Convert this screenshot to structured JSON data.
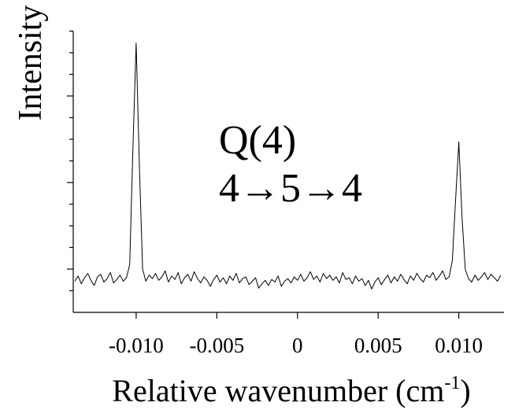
{
  "chart_data": {
    "type": "line",
    "ylabel": "Intensity",
    "xlabel": {
      "text": "Relative wavenumber (cm",
      "sup": "-1",
      "end": ")"
    },
    "annotations": [
      "Q(4)",
      "4→5→4"
    ],
    "color": "#000000",
    "xlim": [
      -0.0139,
      0.0128
    ],
    "xticks": [
      {
        "value": -0.01,
        "label": "-0.010"
      },
      {
        "value": -0.005,
        "label": "-0.005"
      },
      0,
      0.005,
      {
        "value": 0.01,
        "label": "0.010"
      }
    ],
    "ylim": [
      0,
      3.25
    ],
    "yticks": [
      0.5,
      1.5,
      2.5
    ],
    "yminorticks": [
      0.25,
      0.75,
      1,
      1.25,
      1.75,
      2,
      2.25,
      2.75,
      3,
      3.25
    ],
    "x": [
      -0.0138,
      -0.0136,
      -0.0134,
      -0.0132,
      -0.013,
      -0.0128,
      -0.0126,
      -0.0124,
      -0.0122,
      -0.012,
      -0.0118,
      -0.0116,
      -0.0114,
      -0.0112,
      -0.011,
      -0.0108,
      -0.0106,
      -0.0104,
      -0.0102,
      -0.01,
      -0.0098,
      -0.0096,
      -0.0094,
      -0.0092,
      -0.009,
      -0.0088,
      -0.0086,
      -0.0084,
      -0.0082,
      -0.008,
      -0.0078,
      -0.0076,
      -0.0074,
      -0.0072,
      -0.007,
      -0.0068,
      -0.0066,
      -0.0064,
      -0.0062,
      -0.006,
      -0.0058,
      -0.0056,
      -0.0054,
      -0.0052,
      -0.005,
      -0.0048,
      -0.0046,
      -0.0044,
      -0.0042,
      -0.004,
      -0.0038,
      -0.0036,
      -0.0034,
      -0.0032,
      -0.003,
      -0.0028,
      -0.0026,
      -0.0024,
      -0.0022,
      -0.002,
      -0.0018,
      -0.0016,
      -0.0014,
      -0.0012,
      -0.001,
      -0.0008,
      -0.0006,
      -0.0004,
      -0.0002,
      0,
      0.0002,
      0.0004,
      0.0006,
      0.0008,
      0.001,
      0.0012,
      0.0014,
      0.0016,
      0.0018,
      0.002,
      0.0022,
      0.0024,
      0.0026,
      0.0028,
      0.003,
      0.0032,
      0.0034,
      0.0036,
      0.0038,
      0.004,
      0.0042,
      0.0044,
      0.0046,
      0.0048,
      0.005,
      0.0052,
      0.0054,
      0.0056,
      0.0058,
      0.006,
      0.0062,
      0.0064,
      0.0066,
      0.0068,
      0.007,
      0.0072,
      0.0074,
      0.0076,
      0.0078,
      0.008,
      0.0082,
      0.0084,
      0.0086,
      0.0088,
      0.009,
      0.0092,
      0.0094,
      0.0096,
      0.0098,
      0.01,
      0.0102,
      0.0104,
      0.0106,
      0.0108,
      0.011,
      0.0112,
      0.0114,
      0.0116,
      0.0118,
      0.012,
      0.0122,
      0.0124,
      0.0126
    ],
    "values": [
      0.36,
      0.42,
      0.33,
      0.4,
      0.45,
      0.37,
      0.31,
      0.41,
      0.44,
      0.35,
      0.39,
      0.46,
      0.34,
      0.38,
      0.43,
      0.36,
      0.4,
      0.55,
      1.9,
      3.11,
      1.7,
      0.5,
      0.36,
      0.43,
      0.39,
      0.45,
      0.37,
      0.41,
      0.48,
      0.35,
      0.42,
      0.38,
      0.46,
      0.33,
      0.4,
      0.44,
      0.36,
      0.47,
      0.39,
      0.34,
      0.41,
      0.37,
      0.3,
      0.38,
      0.43,
      0.35,
      0.4,
      0.33,
      0.42,
      0.37,
      0.45,
      0.34,
      0.39,
      0.41,
      0.32,
      0.36,
      0.4,
      0.28,
      0.33,
      0.37,
      0.31,
      0.38,
      0.35,
      0.42,
      0.3,
      0.36,
      0.39,
      0.34,
      0.41,
      0.37,
      0.44,
      0.36,
      0.4,
      0.47,
      0.38,
      0.42,
      0.35,
      0.45,
      0.39,
      0.43,
      0.37,
      0.41,
      0.34,
      0.46,
      0.38,
      0.4,
      0.33,
      0.42,
      0.36,
      0.39,
      0.31,
      0.37,
      0.27,
      0.35,
      0.4,
      0.32,
      0.38,
      0.43,
      0.34,
      0.41,
      0.36,
      0.44,
      0.38,
      0.33,
      0.42,
      0.37,
      0.45,
      0.39,
      0.35,
      0.43,
      0.4,
      0.46,
      0.37,
      0.42,
      0.48,
      0.38,
      0.41,
      0.6,
      1.3,
      1.97,
      1.1,
      0.5,
      0.39,
      0.35,
      0.43,
      0.37,
      0.41,
      0.46,
      0.38,
      0.44,
      0.4,
      0.36,
      0.43
    ]
  }
}
